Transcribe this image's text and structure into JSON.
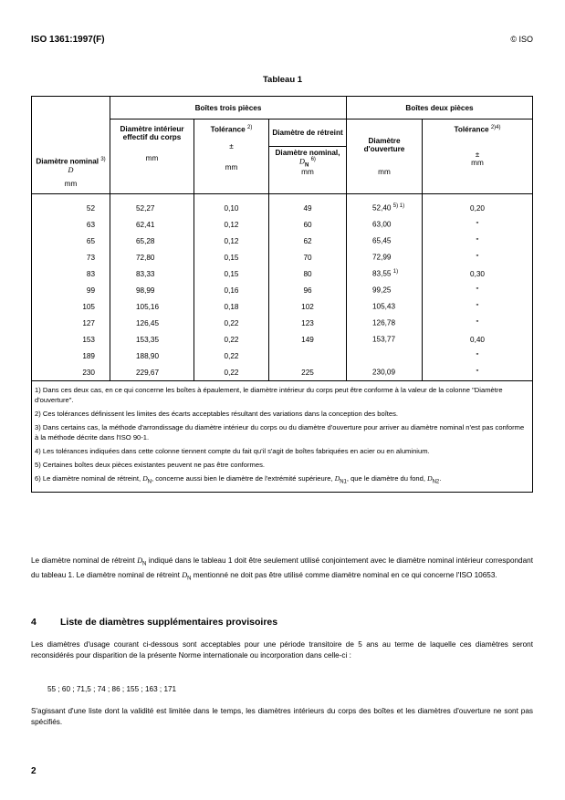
{
  "header": {
    "doc_id": "ISO 1361:1997(F)",
    "copyright": "© ISO"
  },
  "table": {
    "caption": "Tableau 1",
    "group_three": "Boîtes trois pièces",
    "group_two": "Boîtes deux pièces",
    "col_nominal": {
      "label": "Diamètre nominal",
      "sup": "3)",
      "symbol": "D",
      "unit": "mm"
    },
    "col_inner": {
      "label": "Diamètre intérieur effectif du corps",
      "unit": "mm"
    },
    "col_tol3": {
      "label": "Tolérance",
      "sup": "2)",
      "sign": "±",
      "unit": "mm"
    },
    "col_retreint": {
      "label": "Diamètre de rétreint",
      "sublabel": "Diamètre nominal,",
      "symbol": "D",
      "symbol_sub": "N",
      "sup": "6)",
      "unit": "mm"
    },
    "col_opening": {
      "label": "Diamètre d'ouverture",
      "unit": "mm"
    },
    "col_tol2": {
      "label": "Tolérance",
      "sup": "2)4)",
      "sign": "±",
      "unit": "mm"
    },
    "rows": [
      {
        "nominal": "52",
        "inner": "52,27",
        "tol3": "0,10",
        "retreint": "49",
        "opening": "52,40",
        "opening_sup": "5) 1)",
        "tol2": "0,20"
      },
      {
        "nominal": "63",
        "inner": "62,41",
        "tol3": "0,12",
        "retreint": "60",
        "opening": "63,00",
        "opening_sup": "",
        "tol2": "\""
      },
      {
        "nominal": "65",
        "inner": "65,28",
        "tol3": "0,12",
        "retreint": "62",
        "opening": "65,45",
        "opening_sup": "",
        "tol2": "\""
      },
      {
        "nominal": "73",
        "inner": "72,80",
        "tol3": "0,15",
        "retreint": "70",
        "opening": "72,99",
        "opening_sup": "",
        "tol2": "\""
      },
      {
        "nominal": "83",
        "inner": "83,33",
        "tol3": "0,15",
        "retreint": "80",
        "opening": "83,55",
        "opening_sup": "1)",
        "tol2": "0,30"
      },
      {
        "nominal": "99",
        "inner": "98,99",
        "tol3": "0,16",
        "retreint": "96",
        "opening": "99,25",
        "opening_sup": "",
        "tol2": "\""
      },
      {
        "nominal": "105",
        "inner": "105,16",
        "tol3": "0,18",
        "retreint": "102",
        "opening": "105,43",
        "opening_sup": "",
        "tol2": "\""
      },
      {
        "nominal": "127",
        "inner": "126,45",
        "tol3": "0,22",
        "retreint": "123",
        "opening": "126,78",
        "opening_sup": "",
        "tol2": "\""
      },
      {
        "nominal": "153",
        "inner": "153,35",
        "tol3": "0,22",
        "retreint": "149",
        "opening": "153,77",
        "opening_sup": "",
        "tol2": "0,40"
      },
      {
        "nominal": "189",
        "inner": "188,90",
        "tol3": "0,22",
        "retreint": "",
        "opening": "",
        "opening_sup": "",
        "tol2": "\""
      },
      {
        "nominal": "230",
        "inner": "229,67",
        "tol3": "0,22",
        "retreint": "225",
        "opening": "230,09",
        "opening_sup": "",
        "tol2": "\""
      }
    ],
    "notes": [
      "1) Dans ces deux cas, en ce qui concerne les boîtes à épaulement, le diamètre intérieur du corps peut être conforme à la valeur de la colonne \"Diamètre d'ouverture\".",
      "2) Ces tolérances définissent les limites des écarts acceptables résultant des variations dans la conception des boîtes.",
      "3) Dans certains cas, la méthode d'arrondissage du diamètre intérieur du corps ou du diamètre d'ouverture pour arriver au diamètre nominal n'est pas conforme à la méthode décrite dans l'ISO 90-1.",
      "4) Les tolérances indiquées dans cette colonne tiennent compte du fait qu'il s'agit de boîtes fabriquées en acier ou en aluminium.",
      "5) Certaines boîtes deux pièces existantes peuvent ne pas être conformes."
    ],
    "note6": {
      "a": "6) Le diamètre nominal de rétreint, ",
      "sym": "D",
      "sub": "N",
      "b": ", concerne aussi bien le diamètre de l'extrémité supérieure, ",
      "sub1": "N1",
      "c": ", que le diamètre du fond, ",
      "sub2": "N2",
      "d": "."
    }
  },
  "para1": {
    "a": "Le diamètre nominal de rétreint ",
    "sym": "D",
    "sub": "N",
    "b": " indiqué dans le tableau 1 doit être seulement utilisé conjointement avec le diamètre nominal intérieur correspondant du tableau 1. Le diamètre nominal de rétreint ",
    "c": " mentionné ne doit pas être utilisé comme diamètre nominal en ce qui concerne l'ISO 10653."
  },
  "section4": {
    "number": "4",
    "title": "Liste de diamètres supplémentaires provisoires",
    "intro": "Les diamètres d'usage courant ci-dessous sont acceptables pour une période transitoire de 5 ans au terme de laquelle ces diamètres seront reconsidérés pour disparition de la présente Norme internationale ou incorporation dans celle-ci :",
    "list": "55 ; 60 ; 71,5 ; 74 ; 86 ; 155 ; 163 ; 171",
    "closing": "S'agissant d'une liste dont la validité est limitée dans le temps, les diamètres intérieurs du corps des boîtes et les diamètres d'ouverture ne sont pas spécifiés."
  },
  "page_number": "2"
}
